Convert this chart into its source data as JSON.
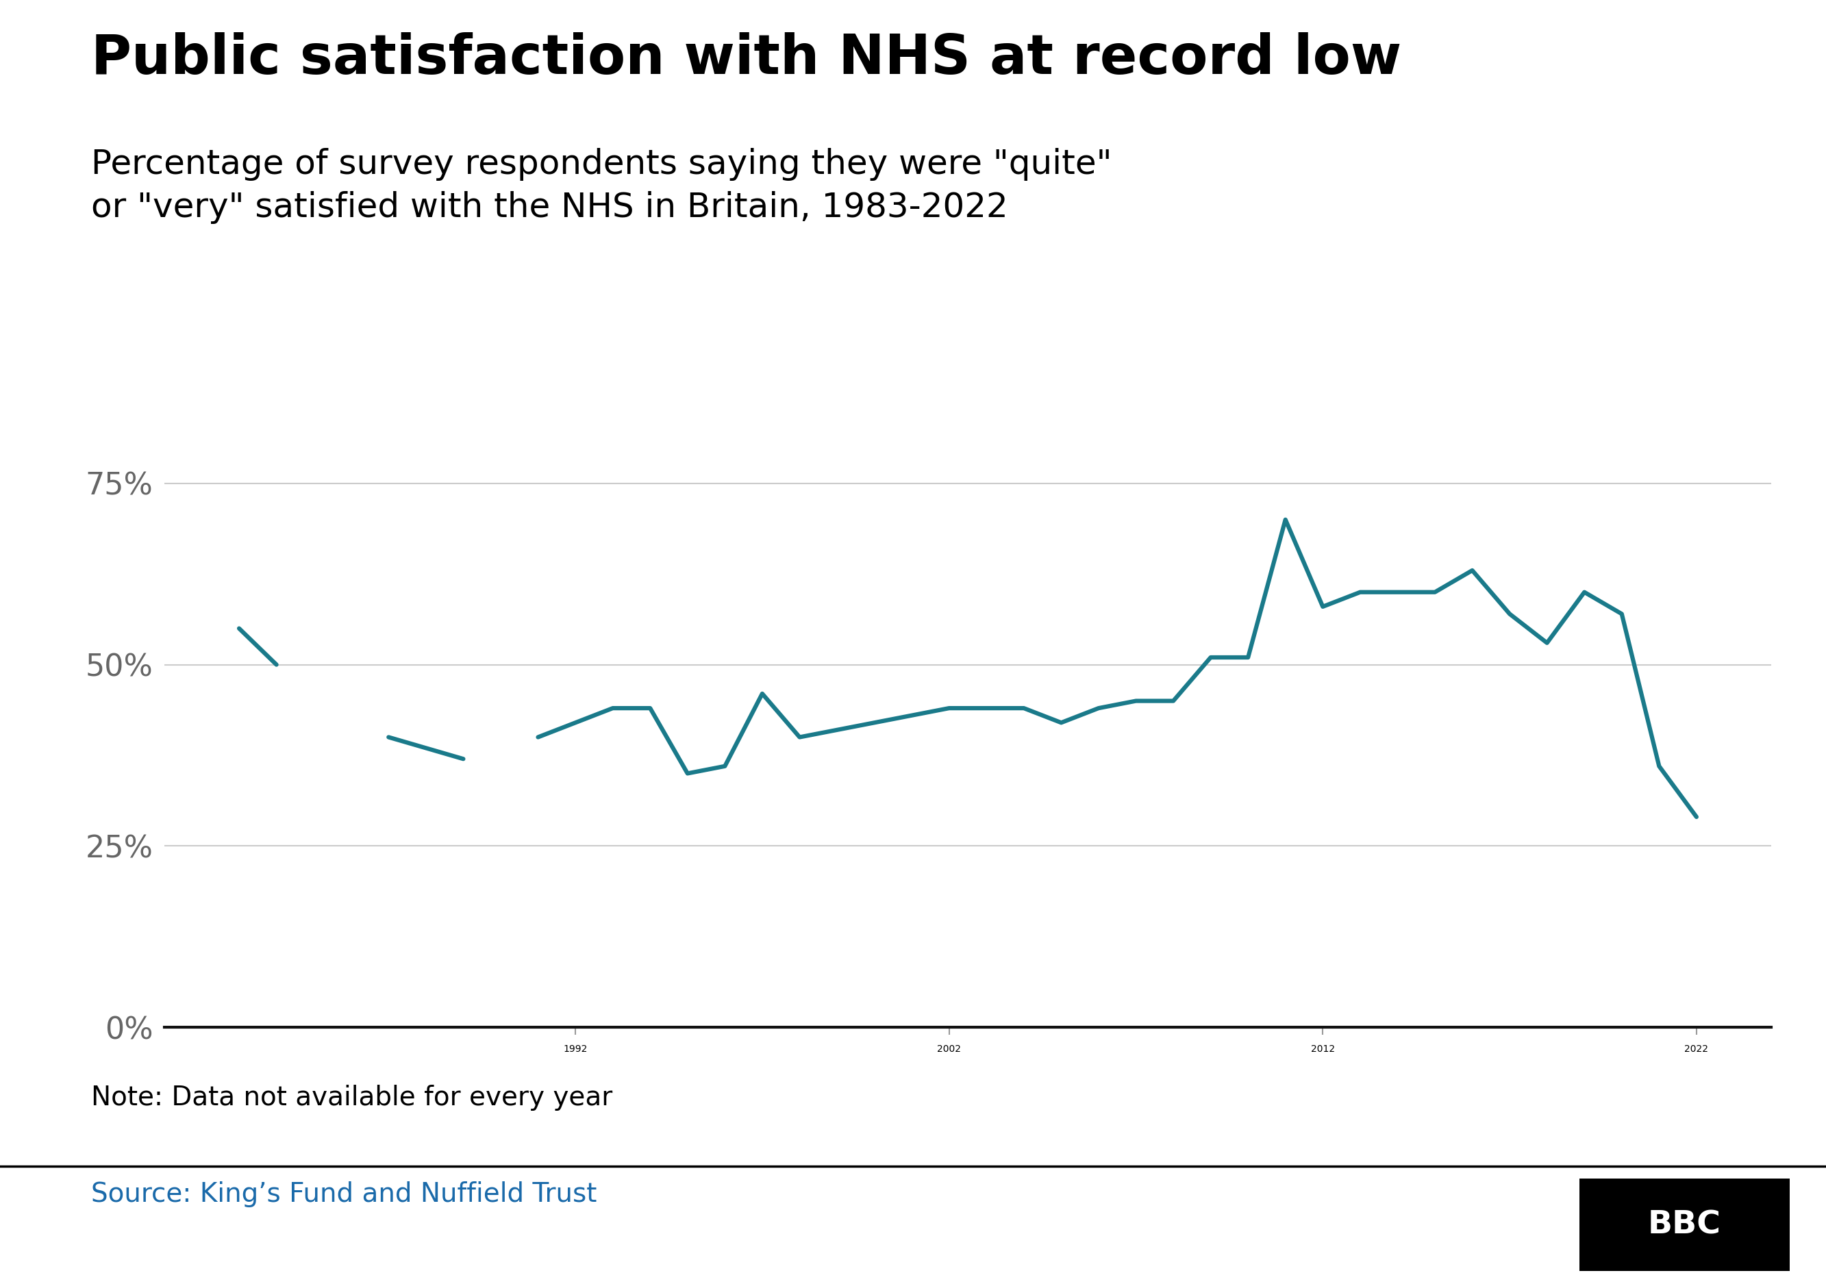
{
  "title": "Public satisfaction with NHS at record low",
  "subtitle": "Percentage of survey respondents saying they were \"quite\"\nor \"very\" satisfied with the NHS in Britain, 1983-2022",
  "note": "Note: Data not available for every year",
  "source": "Source: King’s Fund and Nuffield Trust",
  "line_color": "#1a7a8a",
  "line_width": 4.5,
  "background_color": "#ffffff",
  "title_fontsize": 58,
  "subtitle_fontsize": 36,
  "note_fontsize": 28,
  "source_fontsize": 28,
  "tick_fontsize": 32,
  "segments": [
    {
      "years": [
        1983,
        1984
      ],
      "values": [
        55,
        50
      ]
    },
    {
      "years": [
        1987,
        1989
      ],
      "values": [
        40,
        37
      ]
    },
    {
      "years": [
        1991,
        1993,
        1994,
        1995,
        1996,
        1997,
        1998,
        1999,
        2000,
        2001,
        2002,
        2003,
        2004,
        2005,
        2006,
        2007,
        2008,
        2009,
        2010,
        2011,
        2012,
        2013,
        2014,
        2015,
        2016,
        2017,
        2018,
        2019,
        2020,
        2021,
        2022
      ],
      "values": [
        40,
        44,
        44,
        35,
        36,
        46,
        40,
        41,
        42,
        43,
        44,
        44,
        44,
        42,
        44,
        45,
        45,
        51,
        51,
        70,
        58,
        60,
        60,
        60,
        63,
        57,
        53,
        60,
        57,
        36,
        29
      ]
    }
  ],
  "ylim": [
    0,
    85
  ],
  "xlim": [
    1981,
    2024
  ],
  "yticks": [
    0,
    25,
    50,
    75
  ],
  "xticks": [
    1992,
    2002,
    2012,
    2022
  ]
}
